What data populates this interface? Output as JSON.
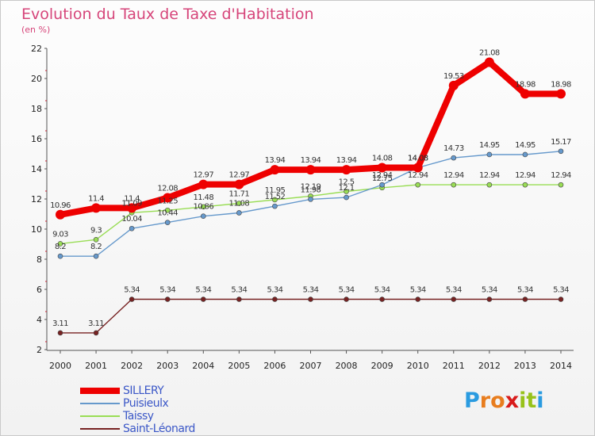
{
  "header": {
    "title": "Evolution du Taux de Taxe d'Habitation",
    "subtitle": "(en %)"
  },
  "chart_data": {
    "type": "line",
    "title": "Evolution du Taux de Taxe d'Habitation",
    "ylabel": "(en %)",
    "xlabel": "",
    "x": [
      "2000",
      "2001",
      "2002",
      "2003",
      "2004",
      "2005",
      "2006",
      "2007",
      "2008",
      "2009",
      "2010",
      "2011",
      "2012",
      "2013",
      "2014"
    ],
    "ylim": [
      2,
      22
    ],
    "yticks": [
      2,
      4,
      6,
      8,
      10,
      12,
      14,
      16,
      18,
      20,
      22
    ],
    "grid": false,
    "legend_position": "bottom-left",
    "series": [
      {
        "name": "SILLERY",
        "color": "#ee0000",
        "values": [
          10.96,
          11.4,
          11.4,
          12.08,
          12.97,
          12.97,
          13.94,
          13.94,
          13.94,
          14.08,
          14.08,
          19.53,
          21.08,
          18.98,
          18.98
        ],
        "labels": [
          "10.96",
          "11.4",
          "11.4",
          "12.08",
          "12.97",
          "12.97",
          "13.94",
          "13.94",
          "13.94",
          "14.08",
          "14.08",
          "19.53",
          "21.08",
          "18.98",
          "18.98"
        ]
      },
      {
        "name": "Puisieulx",
        "color": "#6699cc",
        "values": [
          8.2,
          8.2,
          10.04,
          10.44,
          10.86,
          11.08,
          11.52,
          11.98,
          12.1,
          12.94,
          14.08,
          14.73,
          14.95,
          14.95,
          15.17
        ],
        "labels": [
          "8.2",
          "8.2",
          "10.04",
          "10.44",
          "10.86",
          "11.08",
          "11.52",
          "11.98",
          "12.1",
          "12.94",
          "14.08",
          "14.73",
          "14.95",
          "14.95",
          "15.17"
        ]
      },
      {
        "name": "Taissy",
        "color": "#99dd55",
        "values": [
          9.03,
          9.3,
          11.09,
          11.25,
          11.48,
          11.71,
          11.95,
          12.19,
          12.5,
          12.75,
          12.94,
          12.94,
          12.94,
          12.94,
          12.94
        ],
        "labels": [
          "9.03",
          "9.3",
          "11.09",
          "11.25",
          "11.48",
          "11.71",
          "11.95",
          "12.19",
          "12.5",
          "12.75",
          "12.94",
          "12.94",
          "12.94",
          "12.94",
          "12.94"
        ]
      },
      {
        "name": "Saint-Léonard",
        "color": "#772222",
        "values": [
          3.11,
          3.11,
          5.34,
          5.34,
          5.34,
          5.34,
          5.34,
          5.34,
          5.34,
          5.34,
          5.34,
          5.34,
          5.34,
          5.34,
          5.34
        ],
        "labels": [
          "3.11",
          "3.11",
          "5.34",
          "5.34",
          "5.34",
          "5.34",
          "5.34",
          "5.34",
          "5.34",
          "5.34",
          "5.34",
          "5.34",
          "5.34",
          "5.34",
          "5.34"
        ]
      }
    ]
  },
  "legend": {
    "items": [
      {
        "name": "SILLERY",
        "color": "#ee0000"
      },
      {
        "name": "Puisieulx",
        "color": "#6699cc"
      },
      {
        "name": "Taissy",
        "color": "#99dd55"
      },
      {
        "name": "Saint-Léonard",
        "color": "#772222"
      }
    ]
  },
  "logo": {
    "letters": [
      "P",
      "r",
      "o",
      "x",
      "i",
      "t",
      "i"
    ],
    "colors": [
      "#2a9be0",
      "#e87d1e",
      "#e87d1e",
      "#d81b1b",
      "#97c21a",
      "#97c21a",
      "#2a9be0"
    ]
  }
}
